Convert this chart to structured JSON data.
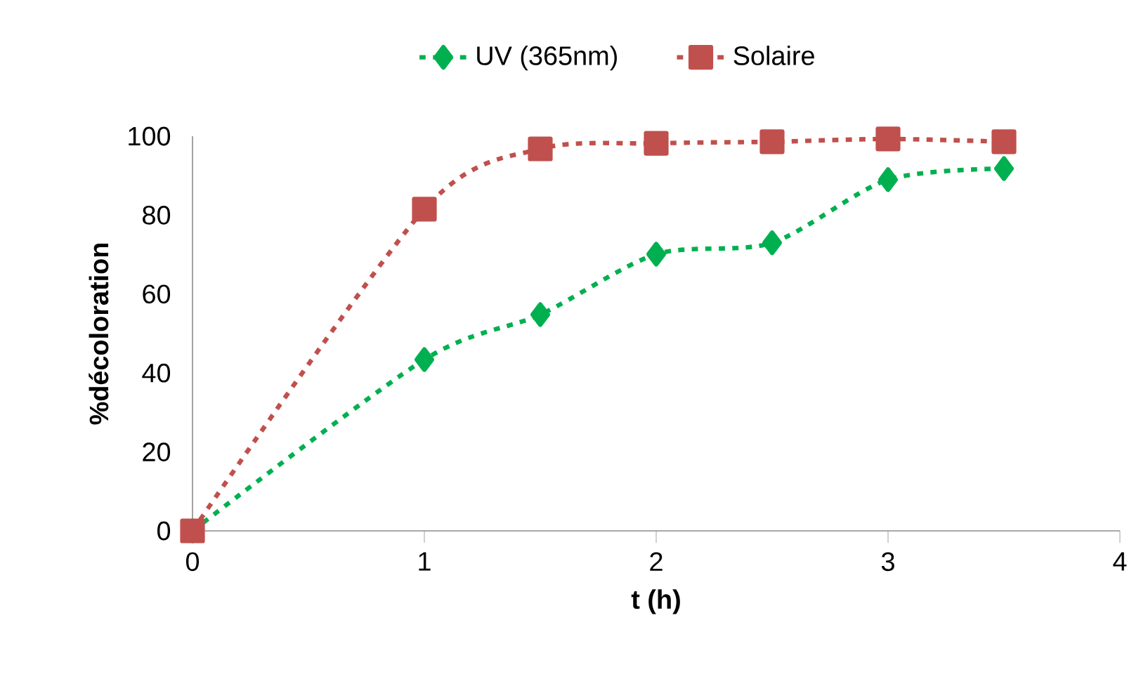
{
  "chart_data": {
    "type": "line",
    "xlabel": "t (h)",
    "ylabel": "%décoloration",
    "x": [
      0,
      1,
      1.5,
      2,
      2.5,
      3,
      3.5
    ],
    "xlim": [
      0,
      4
    ],
    "ylim": [
      0,
      100
    ],
    "xticks": [
      0,
      1,
      2,
      3,
      4
    ],
    "yticks": [
      0,
      20,
      40,
      60,
      80,
      100
    ],
    "legend": "top",
    "line_style": "dotted",
    "grid": false,
    "series": [
      {
        "name": "UV (365nm)",
        "color": "#00b050",
        "marker": "diamond",
        "values": [
          0,
          43.4,
          54.8,
          70.1,
          73,
          89,
          91.8
        ]
      },
      {
        "name": "Solaire",
        "color": "#c0504d",
        "marker": "square",
        "values": [
          0,
          81.5,
          96.8,
          98.2,
          98.6,
          99.3,
          98.6
        ]
      }
    ]
  }
}
